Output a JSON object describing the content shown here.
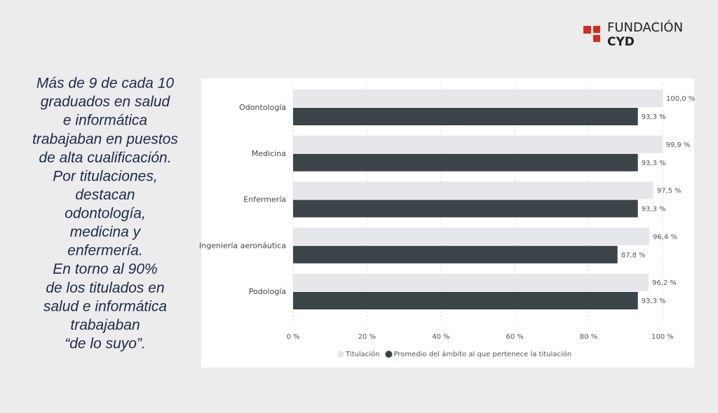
{
  "logo": {
    "line1": "FUNDACIÓN",
    "line2": "CYD"
  },
  "text": {
    "lines": [
      "Más de 9 de cada 10",
      "graduados en salud",
      "e informática",
      "trabajaban en puestos",
      "de alta cualificación.",
      "Por titulaciones,",
      "destacan",
      "odontología,",
      "medicina y",
      "enfermería.",
      "En torno al 90%",
      "de los titulados en",
      "salud e informática",
      "trabajaban",
      "“de lo suyo”."
    ]
  },
  "chart_data": {
    "type": "bar",
    "orientation": "horizontal",
    "categories": [
      "Odontología",
      "Medicina",
      "Enfermería",
      "Ingeniería aeronáutica",
      "Podología"
    ],
    "series": [
      {
        "name": "Titulación",
        "color": "#e6e7ea",
        "values": [
          100.0,
          99.9,
          97.5,
          96.4,
          96.2
        ],
        "value_labels": [
          "100,0 %",
          "99,9 %",
          "97,5 %",
          "96,4 %",
          "96,2 %"
        ]
      },
      {
        "name": "Promedio del ámbito al que pertenece la titulación",
        "color": "#3b4447",
        "values": [
          93.3,
          93.3,
          93.3,
          87.8,
          93.3
        ],
        "value_labels": [
          "93,3 %",
          "93,3 %",
          "93,3 %",
          "87,8 %",
          "93,3 %"
        ]
      }
    ],
    "xlim": [
      0,
      100
    ],
    "xticks": [
      {
        "value": 0,
        "label": "0 %"
      },
      {
        "value": 20,
        "label": "20 %"
      },
      {
        "value": 40,
        "label": "40 %"
      },
      {
        "value": 60,
        "label": "60 %"
      },
      {
        "value": 80,
        "label": "80 %"
      },
      {
        "value": 100,
        "label": "100 %"
      }
    ],
    "grid": true,
    "legend": "bottom"
  }
}
